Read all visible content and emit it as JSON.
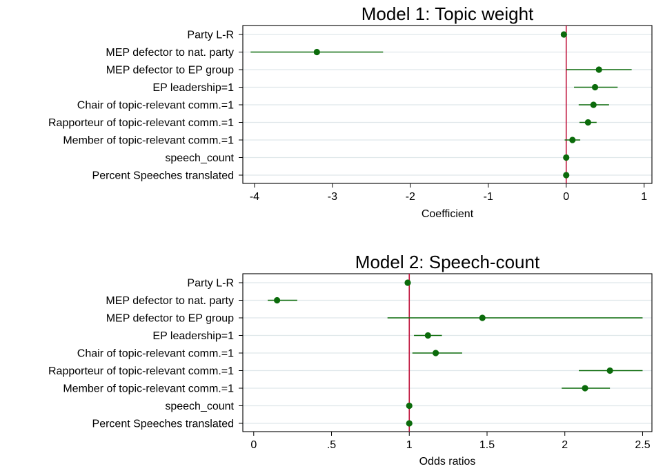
{
  "chart_data": [
    {
      "type": "scatter",
      "subtype": "coefficient-plot",
      "title": "Model 1: Topic weight",
      "xlabel": "Coefficient",
      "xlim": [
        -4.15,
        1.1
      ],
      "xticks": [
        -4,
        -3,
        -2,
        -1,
        0,
        1
      ],
      "tick_labels": [
        "-4",
        "-3",
        "-2",
        "-1",
        "0",
        "1"
      ],
      "reference_line": 0,
      "reference_color": "#c0143c",
      "point_color": "#0b6b0b",
      "grid": true,
      "categories": [
        "Party L-R",
        "MEP defector to nat. party",
        "MEP defector to EP group",
        "EP leadership=1",
        "Chair of topic-relevant comm.=1",
        "Rapporteur of topic-relevant comm.=1",
        "Member of topic-relevant comm.=1",
        "speech_count",
        "Percent Speeches translated"
      ],
      "estimates": [
        -0.03,
        -3.2,
        0.42,
        0.37,
        0.35,
        0.28,
        0.08,
        0.0,
        0.0
      ],
      "ci_low": [
        -0.03,
        -4.05,
        0.0,
        0.1,
        0.16,
        0.17,
        -0.02,
        0.0,
        0.0
      ],
      "ci_high": [
        -0.03,
        -2.35,
        0.84,
        0.66,
        0.55,
        0.39,
        0.18,
        0.0,
        0.0
      ]
    },
    {
      "type": "scatter",
      "subtype": "coefficient-plot",
      "title": "Model 2: Speech-count",
      "xlabel": "Odds ratios",
      "xlim": [
        -0.07,
        2.56
      ],
      "xticks": [
        0,
        0.5,
        1,
        1.5,
        2,
        2.5
      ],
      "tick_labels": [
        "0",
        ".5",
        "1",
        "1.5",
        "2",
        "2.5"
      ],
      "reference_line": 1,
      "reference_color": "#c0143c",
      "point_color": "#0b6b0b",
      "grid": true,
      "categories": [
        "Party L-R",
        "MEP defector to nat. party",
        "MEP defector to EP group",
        "EP leadership=1",
        "Chair of topic-relevant comm.=1",
        "Rapporteur of topic-relevant comm.=1",
        "Member of topic-relevant comm.=1",
        "speech_count",
        "Percent Speeches translated"
      ],
      "estimates": [
        0.99,
        0.15,
        1.47,
        1.12,
        1.17,
        2.29,
        2.13,
        1.0,
        1.0
      ],
      "ci_low": [
        0.99,
        0.09,
        0.86,
        1.03,
        1.02,
        2.09,
        1.98,
        1.0,
        1.0
      ],
      "ci_high": [
        0.99,
        0.28,
        2.5,
        1.21,
        1.34,
        2.5,
        2.29,
        1.0,
        1.0
      ]
    }
  ]
}
